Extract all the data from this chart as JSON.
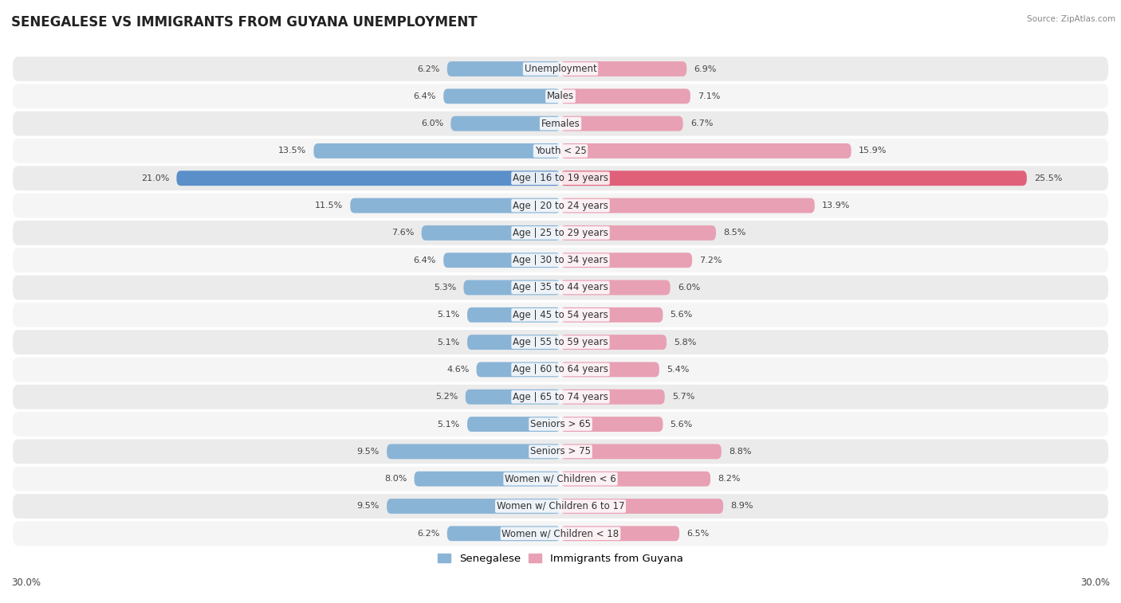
{
  "title": "SENEGALESE VS IMMIGRANTS FROM GUYANA UNEMPLOYMENT",
  "source": "Source: ZipAtlas.com",
  "categories": [
    "Unemployment",
    "Males",
    "Females",
    "Youth < 25",
    "Age | 16 to 19 years",
    "Age | 20 to 24 years",
    "Age | 25 to 29 years",
    "Age | 30 to 34 years",
    "Age | 35 to 44 years",
    "Age | 45 to 54 years",
    "Age | 55 to 59 years",
    "Age | 60 to 64 years",
    "Age | 65 to 74 years",
    "Seniors > 65",
    "Seniors > 75",
    "Women w/ Children < 6",
    "Women w/ Children 6 to 17",
    "Women w/ Children < 18"
  ],
  "senegalese": [
    6.2,
    6.4,
    6.0,
    13.5,
    21.0,
    11.5,
    7.6,
    6.4,
    5.3,
    5.1,
    5.1,
    4.6,
    5.2,
    5.1,
    9.5,
    8.0,
    9.5,
    6.2
  ],
  "guyana": [
    6.9,
    7.1,
    6.7,
    15.9,
    25.5,
    13.9,
    8.5,
    7.2,
    6.0,
    5.6,
    5.8,
    5.4,
    5.7,
    5.6,
    8.8,
    8.2,
    8.9,
    6.5
  ],
  "senegalese_color": "#8ab4d6",
  "guyana_color": "#e8a0b4",
  "highlight_senegalese_color": "#5b8fc9",
  "highlight_guyana_color": "#e0607a",
  "bar_height": 0.55,
  "xlim": 30,
  "row_light_color": "#f0f0f0",
  "row_dark_color": "#e0e0e0",
  "row_bg_color": "#f7f7f7",
  "title_fontsize": 12,
  "label_fontsize": 8.5,
  "value_fontsize": 8,
  "legend_fontsize": 9.5,
  "highlight_label": "Age | 16 to 19 years"
}
